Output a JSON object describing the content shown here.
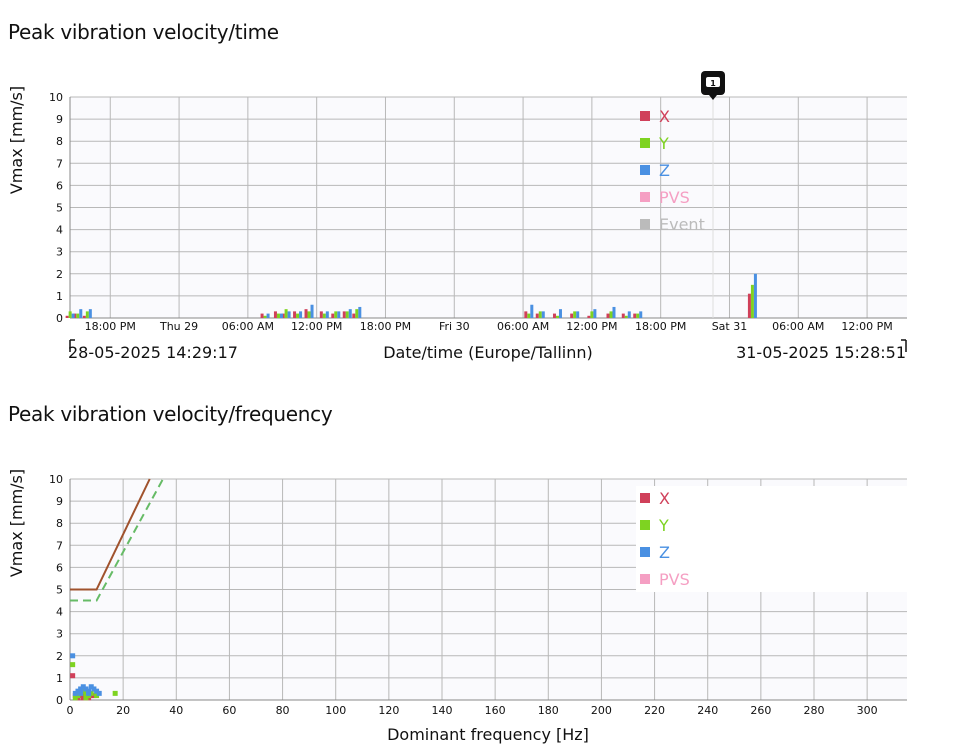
{
  "charts_title_1": "Peak vibration velocity/time",
  "charts_title_2": "Peak vibration velocity/frequency",
  "colors": {
    "X": "#d0405a",
    "Y": "#7ed321",
    "Z": "#4a90e2",
    "PVS": "#f59fc3",
    "Event": "#bbbbbb",
    "limit_solid": "#a0522d",
    "limit_dashed": "#66bb66"
  },
  "chart_data": [
    {
      "type": "bar",
      "title": "Peak vibration velocity/time",
      "ylabel": "Vmax [mm/s]",
      "xlabel": "Date/time (Europe/Tallinn)",
      "range_start": "28-05-2025 14:29:17",
      "range_end": "31-05-2025 15:28:51",
      "event_marker": "1",
      "ylim": [
        0,
        10
      ],
      "yticks": [
        "0",
        "1",
        "2",
        "3",
        "4",
        "5",
        "6",
        "7",
        "8",
        "9",
        "10"
      ],
      "xticks": [
        {
          "t": "2025-05-28T18:00",
          "label": "18:00 PM"
        },
        {
          "t": "2025-05-29T00:00",
          "label": "Thu 29"
        },
        {
          "t": "2025-05-29T06:00",
          "label": "06:00 AM"
        },
        {
          "t": "2025-05-29T12:00",
          "label": "12:00 PM"
        },
        {
          "t": "2025-05-29T18:00",
          "label": "18:00 PM"
        },
        {
          "t": "2025-05-30T00:00",
          "label": "Fri 30"
        },
        {
          "t": "2025-05-30T06:00",
          "label": "06:00 AM"
        },
        {
          "t": "2025-05-30T12:00",
          "label": "12:00 PM"
        },
        {
          "t": "2025-05-30T18:00",
          "label": "18:00 PM"
        },
        {
          "t": "2025-05-31T00:00",
          "label": "Sat 31"
        },
        {
          "t": "2025-05-31T06:00",
          "label": "06:00 AM"
        },
        {
          "t": "2025-05-31T12:00",
          "label": "12:00 PM"
        }
      ],
      "legend": [
        "X",
        "Y",
        "Z",
        "PVS",
        "Event"
      ],
      "legend_position": "top-right",
      "grid": true,
      "series": [
        {
          "name": "X",
          "points": [
            [
              "2025-05-28T14:30",
              0.1
            ],
            [
              "2025-05-28T15:10",
              0.2
            ],
            [
              "2025-05-28T16:00",
              0.1
            ],
            [
              "2025-05-29T07:30",
              0.2
            ],
            [
              "2025-05-29T08:40",
              0.3
            ],
            [
              "2025-05-29T09:20",
              0.2
            ],
            [
              "2025-05-29T10:20",
              0.3
            ],
            [
              "2025-05-29T11:20",
              0.4
            ],
            [
              "2025-05-29T12:40",
              0.3
            ],
            [
              "2025-05-29T13:40",
              0.2
            ],
            [
              "2025-05-29T14:40",
              0.3
            ],
            [
              "2025-05-29T15:30",
              0.2
            ],
            [
              "2025-05-30T06:30",
              0.3
            ],
            [
              "2025-05-30T07:30",
              0.2
            ],
            [
              "2025-05-30T09:00",
              0.2
            ],
            [
              "2025-05-30T10:30",
              0.2
            ],
            [
              "2025-05-30T12:00",
              0.1
            ],
            [
              "2025-05-30T13:40",
              0.2
            ],
            [
              "2025-05-30T15:00",
              0.2
            ],
            [
              "2025-05-30T16:00",
              0.2
            ],
            [
              "2025-05-31T02:00",
              1.1
            ]
          ]
        },
        {
          "name": "Y",
          "points": [
            [
              "2025-05-28T14:30",
              0.3
            ],
            [
              "2025-05-28T15:10",
              0.2
            ],
            [
              "2025-05-28T16:00",
              0.3
            ],
            [
              "2025-05-29T07:30",
              0.1
            ],
            [
              "2025-05-29T08:40",
              0.2
            ],
            [
              "2025-05-29T09:20",
              0.4
            ],
            [
              "2025-05-29T10:20",
              0.2
            ],
            [
              "2025-05-29T11:20",
              0.3
            ],
            [
              "2025-05-29T12:40",
              0.2
            ],
            [
              "2025-05-29T13:40",
              0.3
            ],
            [
              "2025-05-29T14:40",
              0.3
            ],
            [
              "2025-05-29T15:30",
              0.4
            ],
            [
              "2025-05-30T06:30",
              0.2
            ],
            [
              "2025-05-30T07:30",
              0.3
            ],
            [
              "2025-05-30T09:00",
              0.1
            ],
            [
              "2025-05-30T10:30",
              0.3
            ],
            [
              "2025-05-30T12:00",
              0.3
            ],
            [
              "2025-05-30T13:40",
              0.3
            ],
            [
              "2025-05-30T15:00",
              0.1
            ],
            [
              "2025-05-30T16:00",
              0.2
            ],
            [
              "2025-05-31T02:00",
              1.5
            ]
          ]
        },
        {
          "name": "Z",
          "points": [
            [
              "2025-05-28T14:30",
              0.2
            ],
            [
              "2025-05-28T15:10",
              0.4
            ],
            [
              "2025-05-28T16:00",
              0.4
            ],
            [
              "2025-05-29T07:30",
              0.2
            ],
            [
              "2025-05-29T08:40",
              0.2
            ],
            [
              "2025-05-29T09:20",
              0.3
            ],
            [
              "2025-05-29T10:20",
              0.3
            ],
            [
              "2025-05-29T11:20",
              0.6
            ],
            [
              "2025-05-29T12:40",
              0.3
            ],
            [
              "2025-05-29T13:40",
              0.3
            ],
            [
              "2025-05-29T14:40",
              0.4
            ],
            [
              "2025-05-29T15:30",
              0.5
            ],
            [
              "2025-05-30T06:30",
              0.6
            ],
            [
              "2025-05-30T07:30",
              0.3
            ],
            [
              "2025-05-30T09:00",
              0.4
            ],
            [
              "2025-05-30T10:30",
              0.3
            ],
            [
              "2025-05-30T12:00",
              0.4
            ],
            [
              "2025-05-30T13:40",
              0.5
            ],
            [
              "2025-05-30T15:00",
              0.3
            ],
            [
              "2025-05-30T16:00",
              0.3
            ],
            [
              "2025-05-31T02:00",
              2.0
            ]
          ]
        }
      ]
    },
    {
      "type": "scatter",
      "title": "Peak vibration velocity/frequency",
      "ylabel": "Vmax [mm/s]",
      "xlabel": "Dominant frequency [Hz]",
      "xlim": [
        0,
        315
      ],
      "ylim": [
        0,
        10
      ],
      "xticks": [
        "0",
        "20",
        "40",
        "60",
        "80",
        "100",
        "120",
        "140",
        "160",
        "180",
        "200",
        "220",
        "240",
        "260",
        "280",
        "300"
      ],
      "yticks": [
        "0",
        "1",
        "2",
        "3",
        "4",
        "5",
        "6",
        "7",
        "8",
        "9",
        "10"
      ],
      "legend": [
        "X",
        "Y",
        "Z",
        "PVS"
      ],
      "legend_position": "top-right",
      "grid": true,
      "limit_lines": [
        {
          "style": "solid",
          "points": [
            [
              0,
              5
            ],
            [
              10,
              5
            ],
            [
              30,
              10
            ]
          ]
        },
        {
          "style": "dashed",
          "points": [
            [
              0,
              4.5
            ],
            [
              10,
              4.5
            ],
            [
              35,
              10
            ]
          ]
        }
      ],
      "series": [
        {
          "name": "X",
          "points": [
            [
              1,
              1.1
            ],
            [
              2,
              0.2
            ],
            [
              3,
              0.3
            ],
            [
              4,
              0.2
            ],
            [
              5,
              0.3
            ],
            [
              6,
              0.2
            ],
            [
              7,
              0.1
            ],
            [
              8,
              0.2
            ],
            [
              9,
              0.2
            ],
            [
              3,
              0.1
            ],
            [
              5,
              0.1
            ]
          ]
        },
        {
          "name": "Y",
          "points": [
            [
              1,
              1.6
            ],
            [
              2,
              0.1
            ],
            [
              3,
              0.2
            ],
            [
              4,
              0.3
            ],
            [
              5,
              0.4
            ],
            [
              6,
              0.3
            ],
            [
              7,
              0.2
            ],
            [
              8,
              0.3
            ],
            [
              10,
              0.2
            ],
            [
              17,
              0.3
            ],
            [
              6,
              0.1
            ]
          ]
        },
        {
          "name": "Z",
          "points": [
            [
              1,
              2.0
            ],
            [
              2,
              0.3
            ],
            [
              3,
              0.4
            ],
            [
              4,
              0.5
            ],
            [
              5,
              0.6
            ],
            [
              6,
              0.5
            ],
            [
              7,
              0.4
            ],
            [
              8,
              0.6
            ],
            [
              9,
              0.5
            ],
            [
              10,
              0.4
            ],
            [
              11,
              0.3
            ],
            [
              4,
              0.3
            ],
            [
              7,
              0.3
            ]
          ]
        }
      ]
    }
  ]
}
